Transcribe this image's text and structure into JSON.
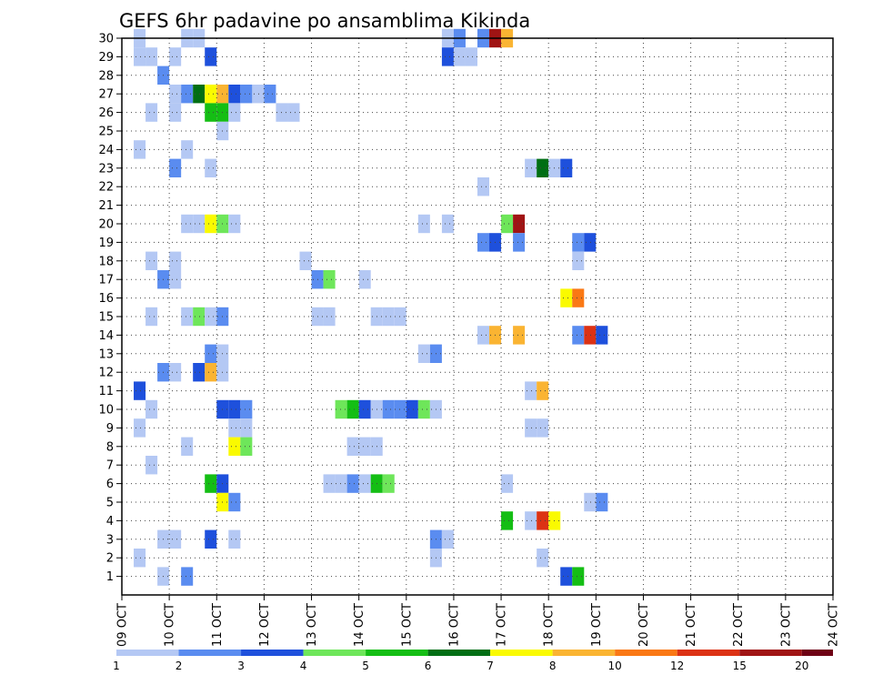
{
  "chart_data": {
    "type": "heatmap",
    "title": "GEFS 6hr padavine po ansamblima Kikinda",
    "xlabel": "",
    "ylabel": "",
    "y_ticks": [
      1,
      2,
      3,
      4,
      5,
      6,
      7,
      8,
      9,
      10,
      11,
      12,
      13,
      14,
      15,
      16,
      17,
      18,
      19,
      20,
      21,
      22,
      23,
      24,
      25,
      26,
      27,
      28,
      29,
      30
    ],
    "ylim": [
      0,
      30
    ],
    "x_ticks": [
      "09 OCT",
      "10 OCT",
      "11 OCT",
      "12 OCT",
      "13 OCT",
      "14 OCT",
      "15 OCT",
      "16 OCT",
      "17 OCT",
      "18 OCT",
      "19 OCT",
      "20 OCT",
      "21 OCT",
      "22 OCT",
      "23 OCT",
      "24 OCT"
    ],
    "time_steps_per_day": 4,
    "grid": true,
    "colorbar": {
      "levels": [
        "1",
        "2",
        "3",
        "4",
        "5",
        "6",
        "7",
        "8",
        "10",
        "12",
        "15",
        "20"
      ],
      "colors": [
        "#b4c8f4",
        "#5a8cf0",
        "#1e50dc",
        "#6ee65a",
        "#14be14",
        "#006e14",
        "#fafa00",
        "#fab432",
        "#fa7814",
        "#dc3214",
        "#a01414",
        "#6e0014"
      ]
    },
    "cells": [
      [
        1,
        30,
        0
      ],
      [
        5,
        30,
        0
      ],
      [
        6,
        30,
        0
      ],
      [
        27,
        30,
        0
      ],
      [
        28,
        30,
        1
      ],
      [
        30,
        30,
        1
      ],
      [
        31,
        30,
        10
      ],
      [
        32,
        30,
        7
      ],
      [
        1,
        29,
        0
      ],
      [
        2,
        29,
        0
      ],
      [
        4,
        29,
        0
      ],
      [
        7,
        29,
        2
      ],
      [
        27,
        29,
        2
      ],
      [
        28,
        29,
        0
      ],
      [
        29,
        29,
        0
      ],
      [
        3,
        28,
        1
      ],
      [
        4,
        27,
        0
      ],
      [
        5,
        27,
        1
      ],
      [
        6,
        27,
        5
      ],
      [
        7,
        27,
        6
      ],
      [
        8,
        27,
        7
      ],
      [
        9,
        27,
        2
      ],
      [
        10,
        27,
        1
      ],
      [
        11,
        27,
        0
      ],
      [
        12,
        27,
        1
      ],
      [
        2,
        26,
        0
      ],
      [
        4,
        26,
        0
      ],
      [
        7,
        26,
        4
      ],
      [
        8,
        26,
        4
      ],
      [
        9,
        26,
        0
      ],
      [
        13,
        26,
        0
      ],
      [
        14,
        26,
        0
      ],
      [
        8,
        25,
        0
      ],
      [
        1,
        24,
        0
      ],
      [
        5,
        24,
        0
      ],
      [
        4,
        23,
        1
      ],
      [
        7,
        23,
        0
      ],
      [
        34,
        23,
        0
      ],
      [
        35,
        23,
        5
      ],
      [
        36,
        23,
        0
      ],
      [
        37,
        23,
        2
      ],
      [
        30,
        22,
        0
      ],
      [
        5,
        20,
        0
      ],
      [
        6,
        20,
        0
      ],
      [
        7,
        20,
        6
      ],
      [
        8,
        20,
        3
      ],
      [
        9,
        20,
        0
      ],
      [
        25,
        20,
        0
      ],
      [
        27,
        20,
        0
      ],
      [
        32,
        20,
        3
      ],
      [
        33,
        20,
        10
      ],
      [
        30,
        19,
        1
      ],
      [
        31,
        19,
        2
      ],
      [
        33,
        19,
        1
      ],
      [
        38,
        19,
        1
      ],
      [
        39,
        19,
        2
      ],
      [
        2,
        18,
        0
      ],
      [
        4,
        18,
        0
      ],
      [
        15,
        18,
        0
      ],
      [
        38,
        18,
        0
      ],
      [
        3,
        17,
        1
      ],
      [
        4,
        17,
        0
      ],
      [
        16,
        17,
        1
      ],
      [
        17,
        17,
        3
      ],
      [
        20,
        17,
        0
      ],
      [
        37,
        16,
        6
      ],
      [
        38,
        16,
        8
      ],
      [
        2,
        15,
        0
      ],
      [
        5,
        15,
        0
      ],
      [
        6,
        15,
        3
      ],
      [
        7,
        15,
        0
      ],
      [
        8,
        15,
        1
      ],
      [
        16,
        15,
        0
      ],
      [
        17,
        15,
        0
      ],
      [
        21,
        15,
        0
      ],
      [
        22,
        15,
        0
      ],
      [
        23,
        15,
        0
      ],
      [
        30,
        14,
        0
      ],
      [
        31,
        14,
        7
      ],
      [
        33,
        14,
        7
      ],
      [
        38,
        14,
        1
      ],
      [
        39,
        14,
        9
      ],
      [
        40,
        14,
        2
      ],
      [
        7,
        13,
        1
      ],
      [
        8,
        13,
        0
      ],
      [
        25,
        13,
        0
      ],
      [
        26,
        13,
        1
      ],
      [
        3,
        12,
        1
      ],
      [
        4,
        12,
        0
      ],
      [
        6,
        12,
        2
      ],
      [
        7,
        12,
        7
      ],
      [
        8,
        12,
        0
      ],
      [
        1,
        11,
        2
      ],
      [
        34,
        11,
        0
      ],
      [
        35,
        11,
        7
      ],
      [
        2,
        10,
        0
      ],
      [
        8,
        10,
        2
      ],
      [
        9,
        10,
        2
      ],
      [
        10,
        10,
        1
      ],
      [
        18,
        10,
        3
      ],
      [
        19,
        10,
        4
      ],
      [
        20,
        10,
        2
      ],
      [
        21,
        10,
        0
      ],
      [
        22,
        10,
        1
      ],
      [
        23,
        10,
        1
      ],
      [
        24,
        10,
        2
      ],
      [
        25,
        10,
        3
      ],
      [
        26,
        10,
        0
      ],
      [
        1,
        9,
        0
      ],
      [
        9,
        9,
        0
      ],
      [
        10,
        9,
        0
      ],
      [
        34,
        9,
        0
      ],
      [
        35,
        9,
        0
      ],
      [
        5,
        8,
        0
      ],
      [
        9,
        8,
        6
      ],
      [
        10,
        8,
        3
      ],
      [
        19,
        8,
        0
      ],
      [
        20,
        8,
        0
      ],
      [
        21,
        8,
        0
      ],
      [
        2,
        7,
        0
      ],
      [
        7,
        6,
        4
      ],
      [
        8,
        6,
        2
      ],
      [
        17,
        6,
        0
      ],
      [
        18,
        6,
        0
      ],
      [
        19,
        6,
        1
      ],
      [
        20,
        6,
        0
      ],
      [
        21,
        6,
        4
      ],
      [
        22,
        6,
        3
      ],
      [
        32,
        6,
        0
      ],
      [
        8,
        5,
        6
      ],
      [
        9,
        5,
        1
      ],
      [
        39,
        5,
        0
      ],
      [
        40,
        5,
        1
      ],
      [
        32,
        4,
        4
      ],
      [
        34,
        4,
        0
      ],
      [
        35,
        4,
        9
      ],
      [
        36,
        4,
        6
      ],
      [
        3,
        3,
        0
      ],
      [
        4,
        3,
        0
      ],
      [
        7,
        3,
        2
      ],
      [
        9,
        3,
        0
      ],
      [
        26,
        3,
        1
      ],
      [
        27,
        3,
        0
      ],
      [
        1,
        2,
        0
      ],
      [
        26,
        2,
        0
      ],
      [
        35,
        2,
        0
      ],
      [
        3,
        1,
        0
      ],
      [
        5,
        1,
        1
      ],
      [
        37,
        1,
        2
      ],
      [
        38,
        1,
        4
      ]
    ]
  }
}
